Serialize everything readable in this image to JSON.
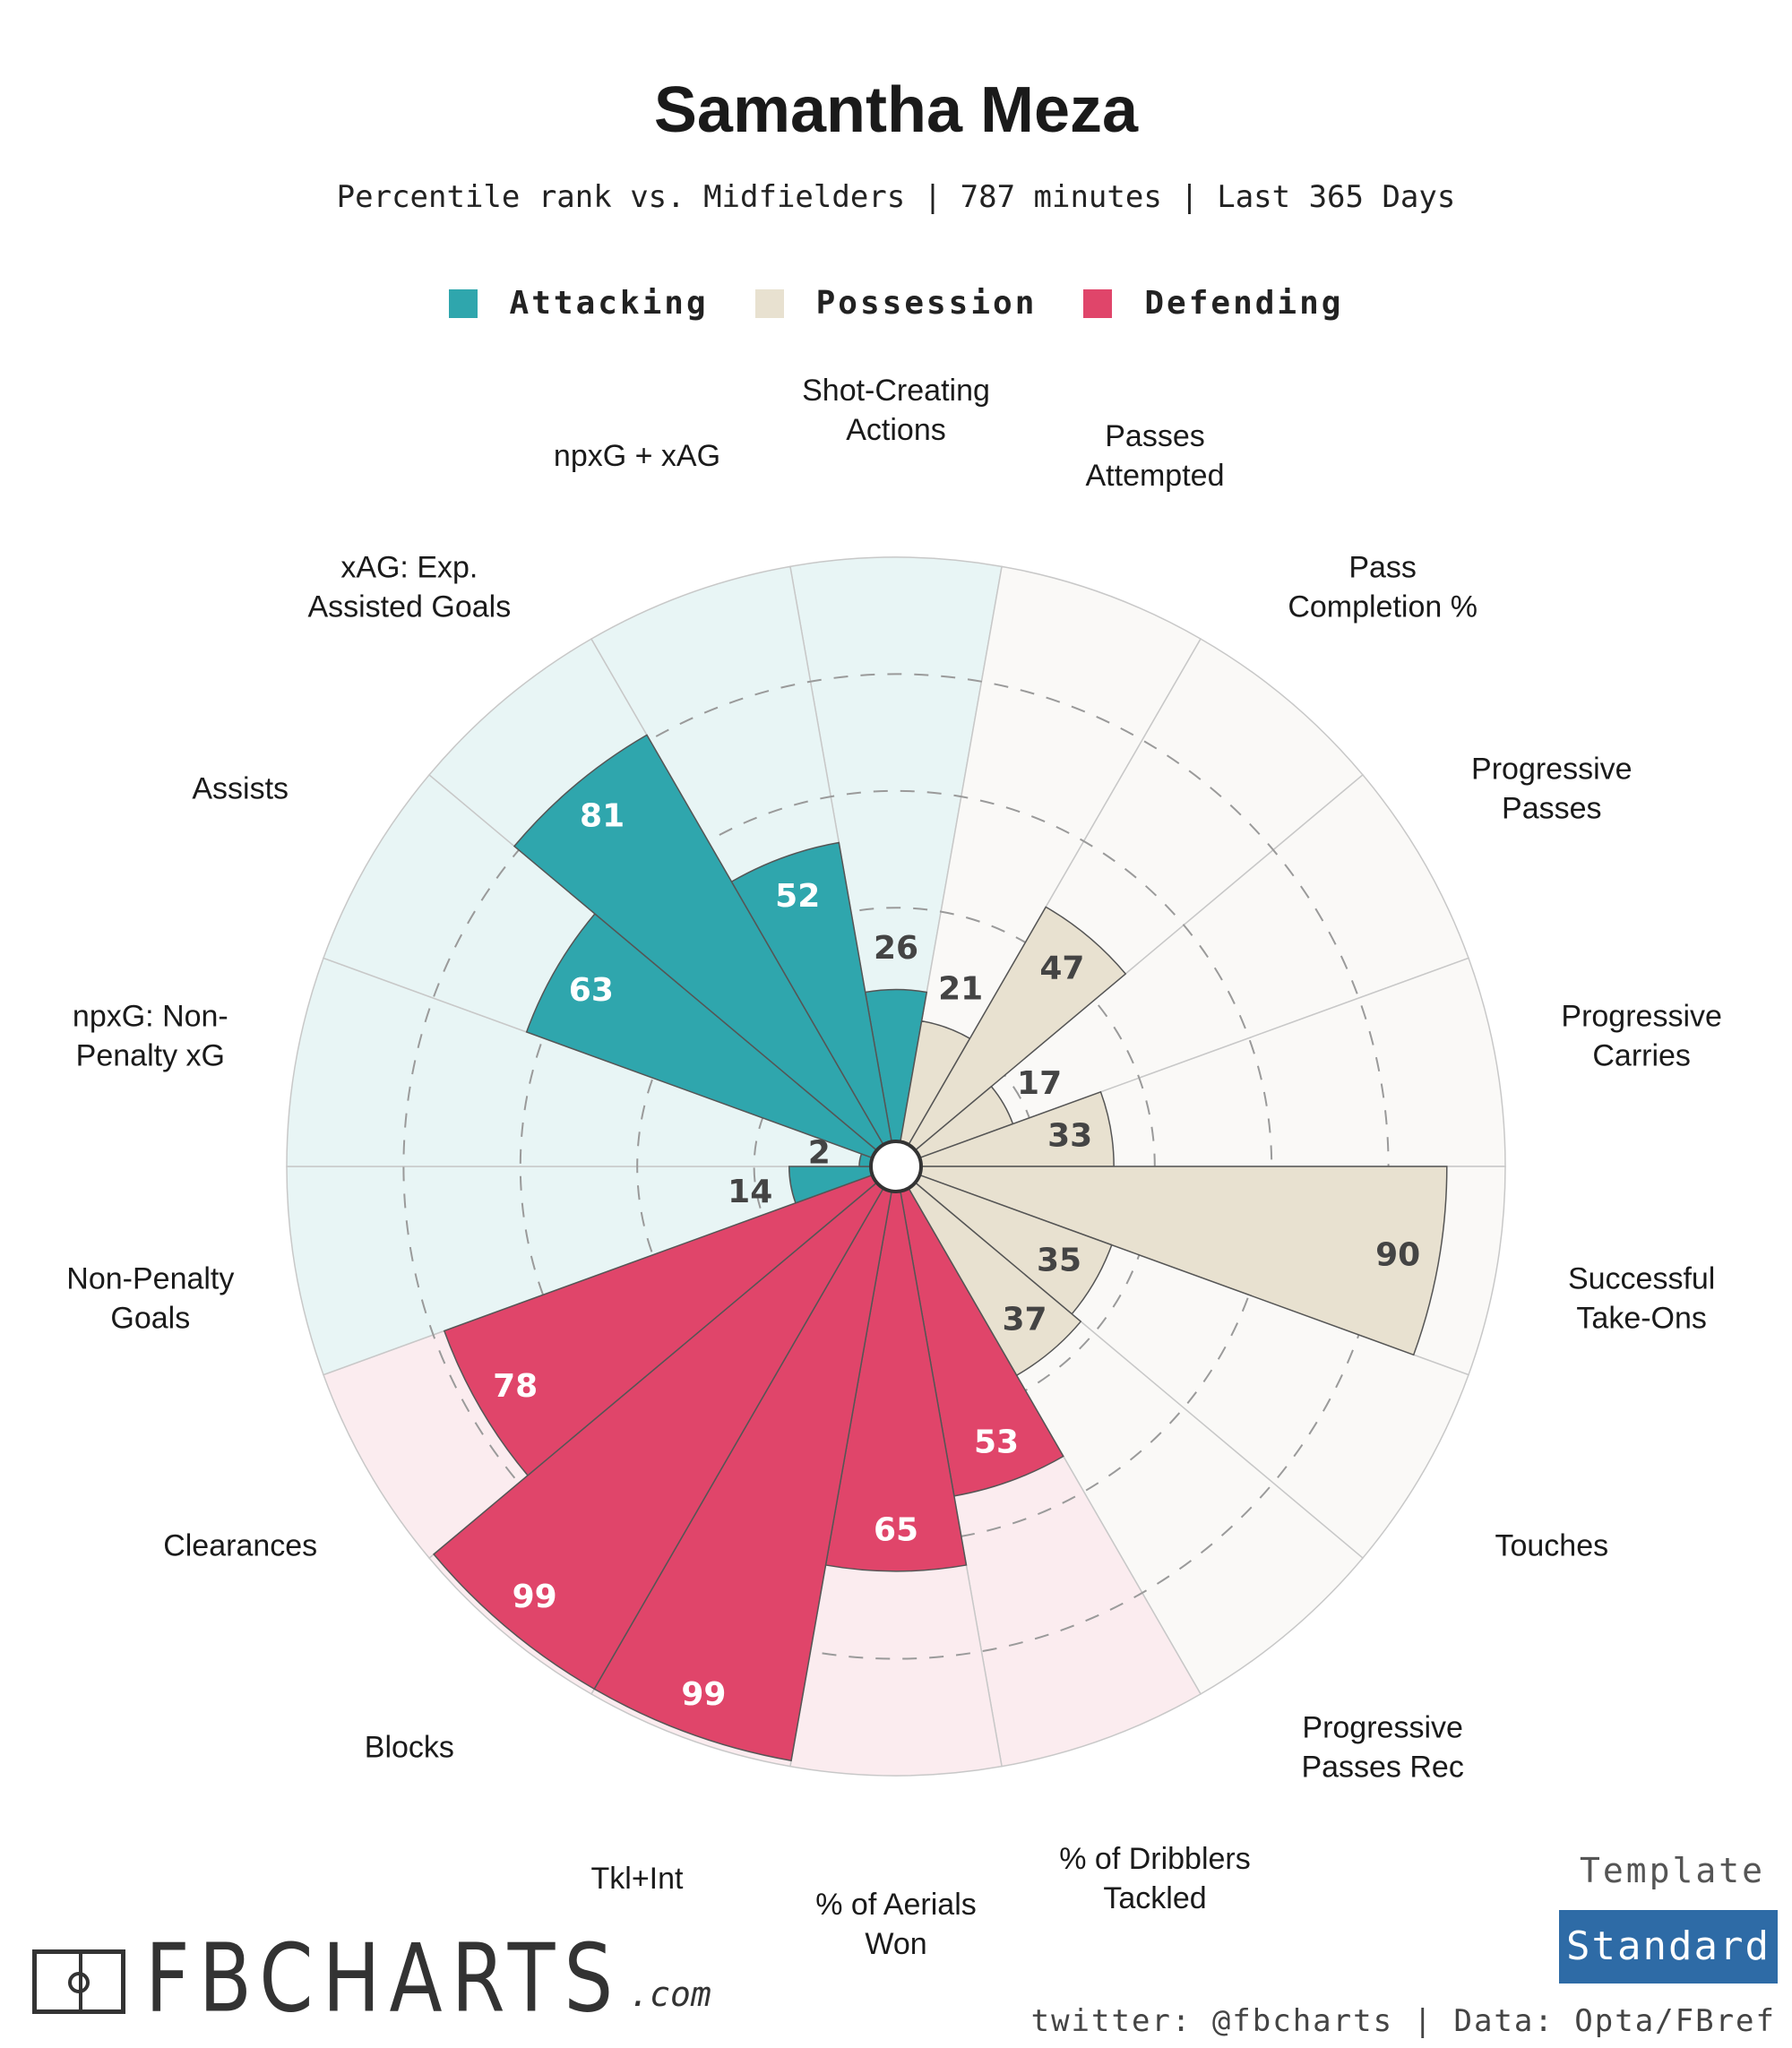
{
  "title": "Samantha Meza",
  "subtitle": "Percentile rank vs. Midfielders | 787 minutes | Last 365 Days",
  "legend": [
    {
      "label": "Attacking",
      "color": "#2fa6ad"
    },
    {
      "label": "Possession",
      "color": "#e8e1d0"
    },
    {
      "label": "Defending",
      "color": "#e0456a"
    }
  ],
  "chart_data": {
    "type": "polar-bar",
    "title": "Samantha Meza",
    "subtitle": "Percentile rank vs. Midfielders | 787 minutes | Last 365 Days",
    "rlim": [
      0,
      100
    ],
    "gridlines": [
      20,
      40,
      60,
      80
    ],
    "metrics": [
      {
        "label": "Shot-Creating\nActions",
        "value": 26,
        "group": "Attacking"
      },
      {
        "label": "Passes\nAttempted",
        "value": 21,
        "group": "Possession"
      },
      {
        "label": "Pass\nCompletion %",
        "value": 47,
        "group": "Possession"
      },
      {
        "label": "Progressive\nPasses",
        "value": 17,
        "group": "Possession"
      },
      {
        "label": "Progressive\nCarries",
        "value": 33,
        "group": "Possession"
      },
      {
        "label": "Successful\nTake-Ons",
        "value": 90,
        "group": "Possession"
      },
      {
        "label": "Touches",
        "value": 35,
        "group": "Possession"
      },
      {
        "label": "Progressive\nPasses Rec",
        "value": 37,
        "group": "Possession"
      },
      {
        "label": "% of Dribblers\nTackled",
        "value": 53,
        "group": "Defending"
      },
      {
        "label": "% of Aerials\nWon",
        "value": 65,
        "group": "Defending"
      },
      {
        "label": "Tkl+Int",
        "value": 99,
        "group": "Defending"
      },
      {
        "label": "Blocks",
        "value": 99,
        "group": "Defending"
      },
      {
        "label": "Clearances",
        "value": 78,
        "group": "Defending"
      },
      {
        "label": "Non-Penalty\nGoals",
        "value": 14,
        "group": "Attacking"
      },
      {
        "label": "npxG: Non-\nPenalty xG",
        "value": 2,
        "group": "Attacking"
      },
      {
        "label": "Assists",
        "value": 63,
        "group": "Attacking"
      },
      {
        "label": "xAG: Exp.\nAssisted Goals",
        "value": 81,
        "group": "Attacking"
      },
      {
        "label": "npxG + xAG",
        "value": 52,
        "group": "Attacking"
      }
    ],
    "colors": {
      "Attacking": {
        "bar": "#2fa6ad",
        "bg": "#e8f5f5",
        "text": "#ffffff"
      },
      "Possession": {
        "bar": "#e8e1d0",
        "bg": "#faf9f7",
        "text": "#444444"
      },
      "Defending": {
        "bar": "#e0456a",
        "bg": "#fbecef",
        "text": "#ffffff"
      }
    }
  },
  "logo": {
    "word": "FBCHARTS",
    "suffix": ".com"
  },
  "template": {
    "label": "Template",
    "name": "Standard"
  },
  "credits": "twitter: @fbcharts | Data: Opta/FBref"
}
